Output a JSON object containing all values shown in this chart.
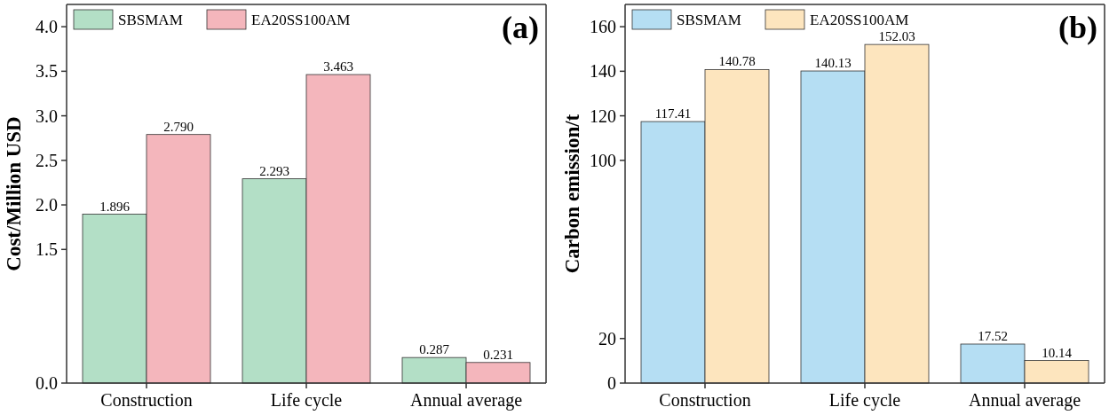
{
  "chart_data": [
    {
      "type": "bar",
      "title": "(a)",
      "ylabel": "Cost/Million USD",
      "categories": [
        "Construction",
        "Life cycle",
        "Annual average"
      ],
      "series": [
        {
          "name": "SBSMAM",
          "color": "#b3dfc6",
          "values": [
            1.896,
            2.293,
            0.287
          ]
        },
        {
          "name": "EA20SS100AM",
          "color": "#f4b6bc",
          "values": [
            2.79,
            3.463,
            0.231
          ]
        }
      ],
      "value_labels": [
        [
          "1.896",
          "2.293",
          "0.287"
        ],
        [
          "2.790",
          "3.463",
          "0.231"
        ]
      ],
      "ylim": [
        0,
        4.25
      ],
      "yticks": [
        {
          "value": 0,
          "label": "0.0"
        },
        {
          "value": 1.5,
          "label": "1.5"
        },
        {
          "value": 2,
          "label": "2.0"
        },
        {
          "value": 2.5,
          "label": "2.5"
        },
        {
          "value": 3,
          "label": "3.0"
        },
        {
          "value": 3.5,
          "label": "3.5"
        },
        {
          "value": 4,
          "label": "4.0"
        }
      ],
      "grid": false,
      "legend": "top left"
    },
    {
      "type": "bar",
      "title": "(b)",
      "ylabel": "Carbon emission/t",
      "categories": [
        "Construction",
        "Life cycle",
        "Annual average"
      ],
      "series": [
        {
          "name": "SBSMAM",
          "color": "#b5def3",
          "values": [
            117.41,
            140.13,
            17.52
          ]
        },
        {
          "name": "EA20SS100AM",
          "color": "#fde5be",
          "values": [
            140.78,
            152.03,
            10.14
          ]
        }
      ],
      "value_labels": [
        [
          "117.41",
          "140.13",
          "17.52"
        ],
        [
          "140.78",
          "152.03",
          "10.14"
        ]
      ],
      "ylim": [
        0,
        170
      ],
      "yticks": [
        0,
        20,
        100,
        120,
        140,
        160
      ],
      "grid": false,
      "legend": "top left"
    }
  ]
}
